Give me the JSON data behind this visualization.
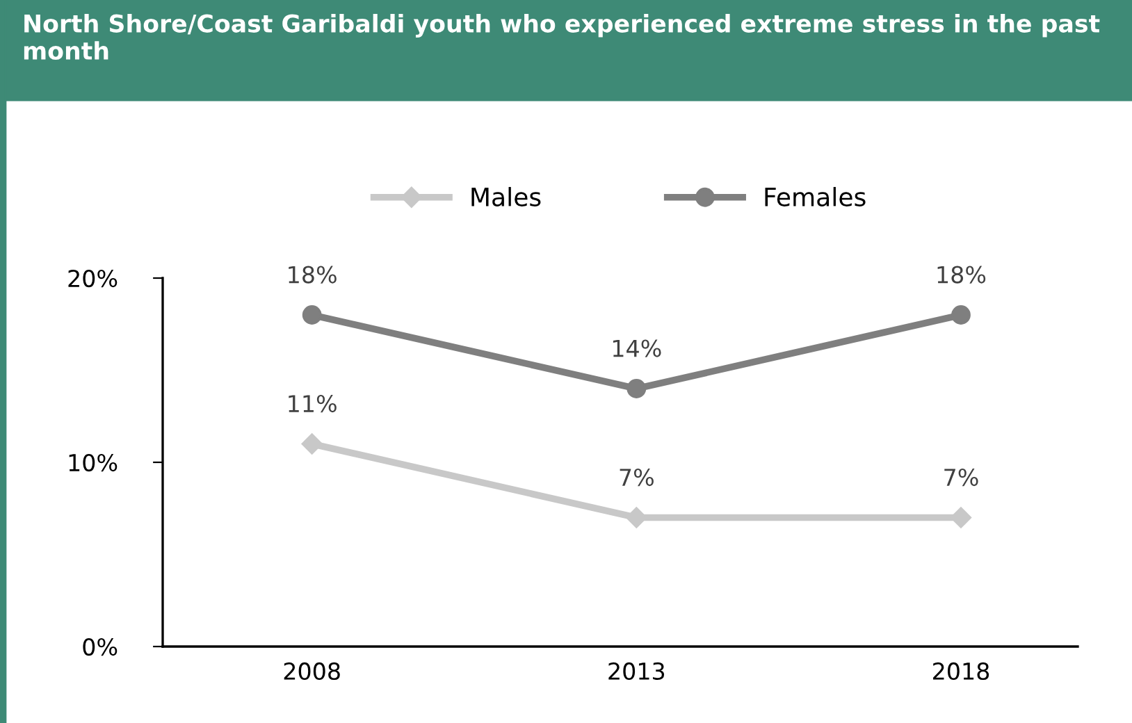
{
  "chart_data": {
    "type": "line",
    "title": "North Shore/Coast Garibaldi youth who experienced extreme stress in the past month",
    "categories": [
      "2008",
      "2013",
      "2018"
    ],
    "series": [
      {
        "name": "Males",
        "color": "#c8c8c8",
        "marker": "diamond",
        "values": [
          11,
          7,
          7
        ],
        "value_labels": [
          "11%",
          "7%",
          "7%"
        ]
      },
      {
        "name": "Females",
        "color": "#7f7f7f",
        "marker": "circle",
        "values": [
          18,
          14,
          18
        ],
        "value_labels": [
          "18%",
          "14%",
          "18%"
        ]
      }
    ],
    "ylim": [
      0,
      20
    ],
    "yticks": [
      {
        "value": 0,
        "label": "0%"
      },
      {
        "value": 10,
        "label": "10%"
      },
      {
        "value": 20,
        "label": "20%"
      }
    ],
    "grid": false,
    "legend": "top"
  }
}
